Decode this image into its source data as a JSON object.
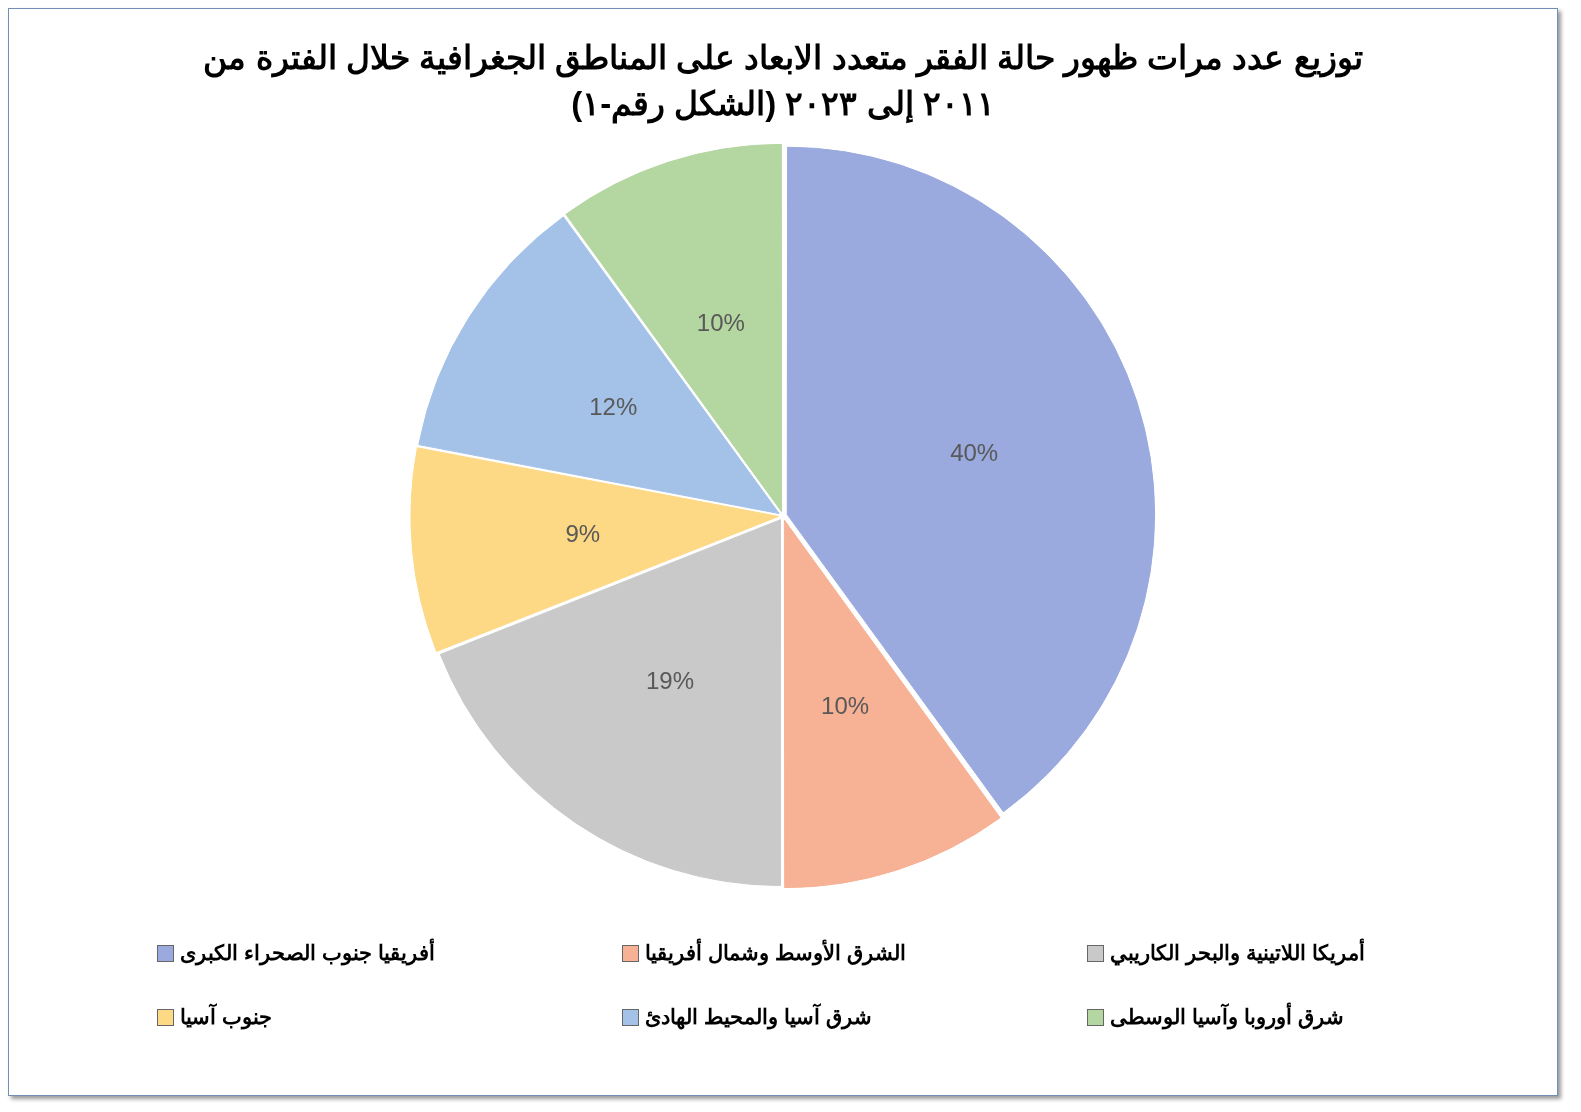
{
  "chart_data": {
    "type": "pie",
    "title": "توزيع عدد مرات ظهور حالة الفقر متعدد الابعاد على المناطق الجغرافية خلال الفترة  من ٢٠١١ إلى ٢٠٢٣ (الشكل رقم-١)",
    "categories": [
      "أفريقيا جنوب الصحراء الكبرى",
      "الشرق الأوسط وشمال أفريقيا",
      "أمريكا اللاتينية والبحر الكاريبي",
      "جنوب آسيا",
      "شرق آسيا والمحيط الهادئ",
      "شرق أوروبا وآسيا الوسطى"
    ],
    "values": [
      40,
      10,
      19,
      9,
      12,
      10
    ],
    "value_labels": [
      "40%",
      "10%",
      "19%",
      "9%",
      "12%",
      "10%"
    ],
    "colors": [
      "#9aaade",
      "#f7b194",
      "#c9c9c9",
      "#fdd885",
      "#a4c2e8",
      "#b4d6a0"
    ],
    "legend": "bottom"
  }
}
